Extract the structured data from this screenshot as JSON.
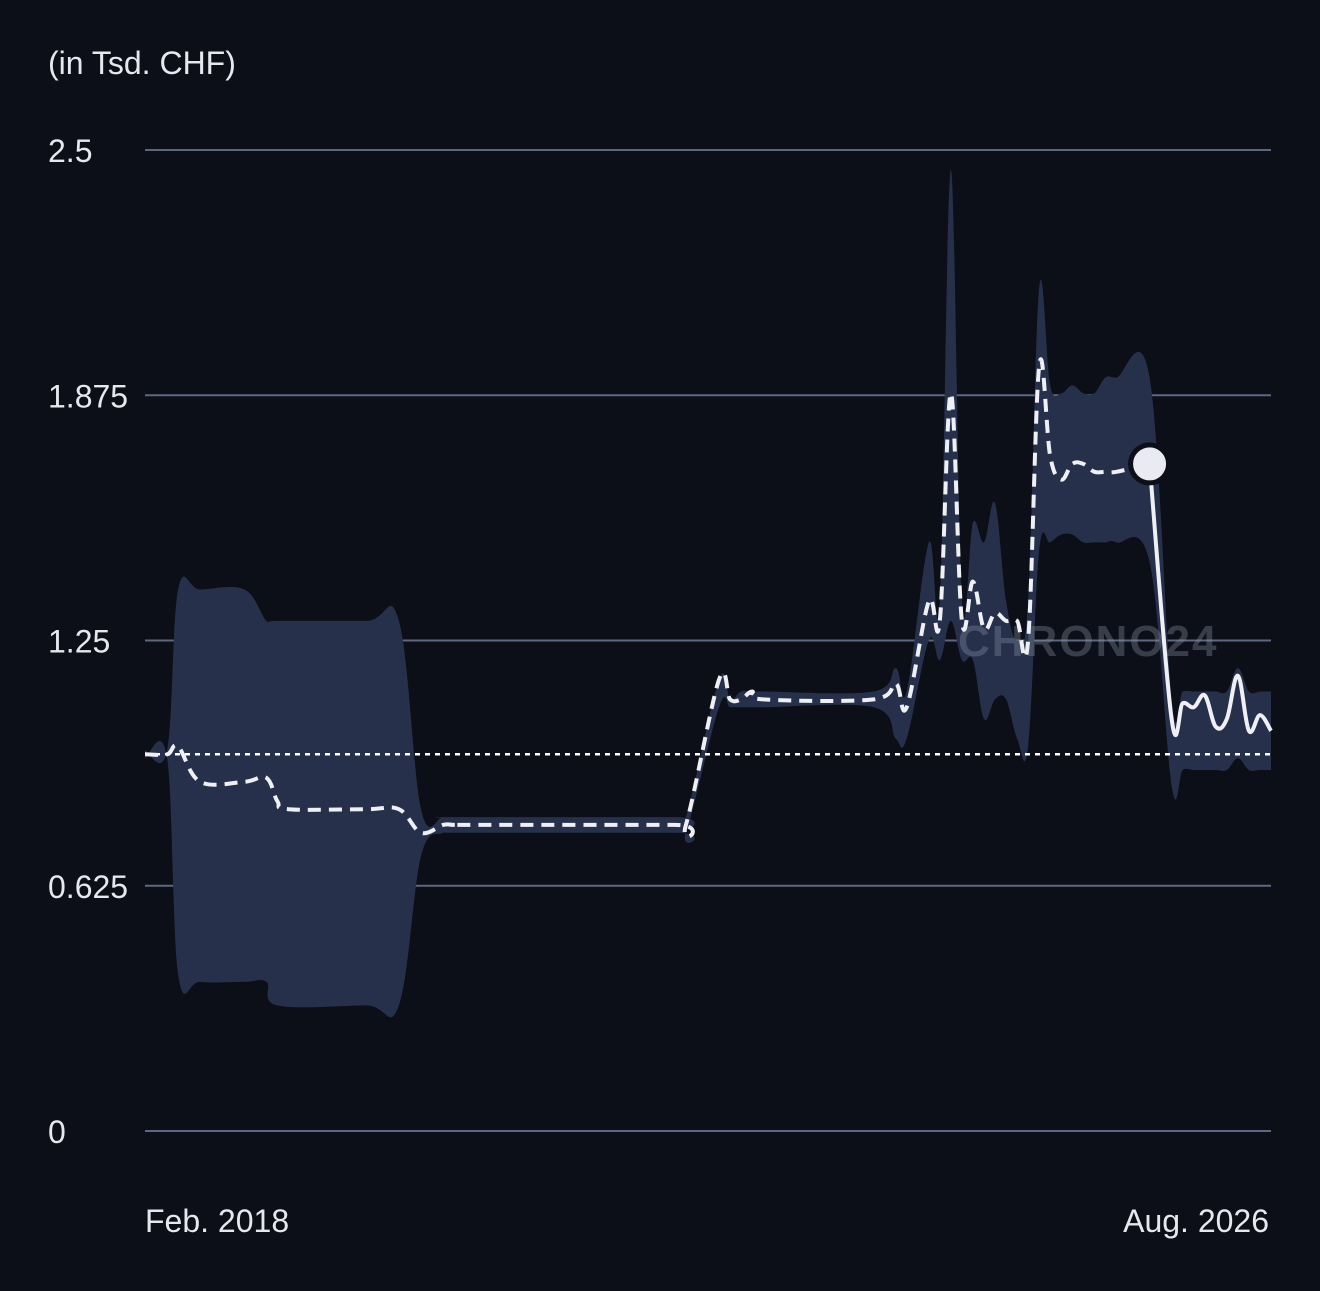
{
  "chart_data": {
    "type": "line",
    "unit_label": "(in Tsd. CHF)",
    "watermark": "CHRONO24",
    "y_ticks": [
      "2.5",
      "1.875",
      "1.25",
      "0.625",
      "0"
    ],
    "y_tick_values": [
      2.5,
      1.875,
      1.25,
      0.625,
      0
    ],
    "ylim": [
      0,
      2.5
    ],
    "x_tick_labels": [
      "Feb. 2018",
      "Aug. 2026"
    ],
    "xlim": [
      "2018-02",
      "2026-08"
    ],
    "grid": true,
    "reference_value": 0.96,
    "colors": {
      "background": "#0c0f18",
      "grid": "#5f6780",
      "band": "#27304a",
      "line": "#eef0f6"
    },
    "series": [
      {
        "style": "dashed",
        "x": [
          "2018-02",
          "2018-04",
          "2018-05",
          "2018-07",
          "2018-11",
          "2019-01",
          "2019-02",
          "2019-03",
          "2019-10",
          "2020-01",
          "2020-03",
          "2020-05",
          "2020-06",
          "2020-08",
          "2022-02",
          "2022-03",
          "2022-06",
          "2022-07",
          "2022-08",
          "2022-09",
          "2022-10",
          "2023-08",
          "2023-10",
          "2023-11",
          "2024-01",
          "2024-02",
          "2024-03",
          "2024-04",
          "2024-05",
          "2024-06",
          "2024-07",
          "2024-08",
          "2024-09",
          "2024-10",
          "2024-11",
          "2024-12",
          "2025-01",
          "2025-02",
          "2025-03",
          "2025-04",
          "2025-05",
          "2025-06",
          "2025-09"
        ],
        "y": [
          0.96,
          0.96,
          0.98,
          0.89,
          0.89,
          0.9,
          0.84,
          0.82,
          0.82,
          0.82,
          0.76,
          0.78,
          0.78,
          0.78,
          0.78,
          0.78,
          1.15,
          1.1,
          1.1,
          1.12,
          1.1,
          1.1,
          1.14,
          1.08,
          1.35,
          1.3,
          1.88,
          1.3,
          1.4,
          1.28,
          1.32,
          1.3,
          1.3,
          1.25,
          1.95,
          1.72,
          1.66,
          1.7,
          1.7,
          1.68,
          1.68,
          1.68,
          1.7
        ]
      },
      {
        "style": "solid",
        "x": [
          "2025-09",
          "2025-11",
          "2025-12",
          "2026-01",
          "2026-02",
          "2026-03",
          "2026-04",
          "2026-05",
          "2026-06",
          "2026-07",
          "2026-08"
        ],
        "y": [
          1.7,
          1.05,
          1.09,
          1.08,
          1.11,
          1.03,
          1.05,
          1.16,
          1.02,
          1.06,
          1.02
        ]
      }
    ],
    "band": {
      "x": [
        "2018-02",
        "2018-04",
        "2018-05",
        "2018-07",
        "2018-11",
        "2019-01",
        "2019-02",
        "2019-10",
        "2020-01",
        "2020-03",
        "2020-05",
        "2020-06",
        "2022-02",
        "2022-03",
        "2022-06",
        "2022-07",
        "2022-08",
        "2022-09",
        "2022-10",
        "2023-08",
        "2023-10",
        "2023-11",
        "2024-01",
        "2024-02",
        "2024-03",
        "2024-04",
        "2024-05",
        "2024-06",
        "2024-07",
        "2024-08",
        "2024-09",
        "2024-10",
        "2024-11",
        "2024-12",
        "2025-01",
        "2025-02",
        "2025-03",
        "2025-04",
        "2025-05",
        "2025-06",
        "2025-09",
        "2025-11",
        "2025-12",
        "2026-01",
        "2026-02",
        "2026-03",
        "2026-04",
        "2026-05",
        "2026-06",
        "2026-07",
        "2026-08"
      ],
      "upper": [
        0.97,
        0.97,
        1.38,
        1.38,
        1.38,
        1.3,
        1.3,
        1.3,
        1.3,
        0.82,
        0.8,
        0.8,
        0.8,
        0.8,
        1.15,
        1.1,
        1.12,
        1.12,
        1.12,
        1.12,
        1.18,
        1.12,
        1.5,
        1.35,
        2.45,
        1.35,
        1.55,
        1.5,
        1.6,
        1.35,
        1.25,
        1.35,
        2.15,
        1.9,
        1.88,
        1.9,
        1.88,
        1.88,
        1.92,
        1.92,
        1.92,
        1.1,
        1.12,
        1.12,
        1.12,
        1.12,
        1.12,
        1.18,
        1.12,
        1.12,
        1.12
      ],
      "lower": [
        0.95,
        0.95,
        0.4,
        0.38,
        0.38,
        0.38,
        0.32,
        0.32,
        0.32,
        0.7,
        0.76,
        0.76,
        0.76,
        0.76,
        1.08,
        1.08,
        1.08,
        1.08,
        1.08,
        1.08,
        1.0,
        1.0,
        1.25,
        1.2,
        1.3,
        1.2,
        1.2,
        1.05,
        1.1,
        1.1,
        1.0,
        0.98,
        1.48,
        1.5,
        1.52,
        1.52,
        1.5,
        1.5,
        1.5,
        1.5,
        1.45,
        0.88,
        0.92,
        0.92,
        0.92,
        0.92,
        0.92,
        0.95,
        0.92,
        0.92,
        0.92
      ]
    },
    "current_point": {
      "x": "2025-09",
      "y": 1.7
    }
  }
}
